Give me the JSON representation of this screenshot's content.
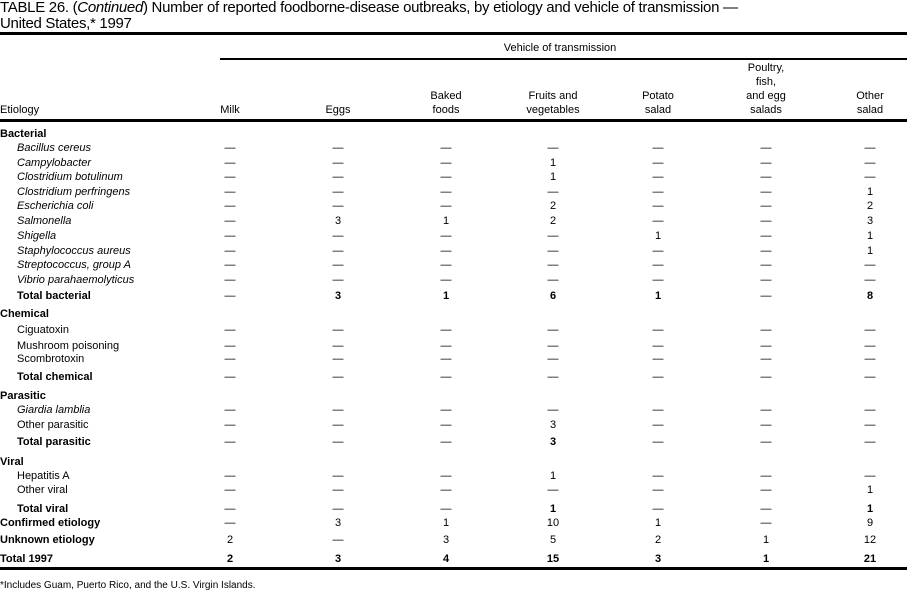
{
  "title": {
    "prefix": "TABLE 26. (",
    "continued": "Continued",
    "suffix": ") Number of reported foodborne-disease  outbreaks, by etiology and vehicle of transmission —",
    "line2": "United States,* 1997"
  },
  "header": {
    "etiology": "Etiology",
    "group": "Vehicle of transmission",
    "columns": [
      "Milk",
      "Eggs",
      "Baked\nfoods",
      "Fruits and\nvegetables",
      "Potato\nsalad",
      "Poultry,\nfish,\nand egg\nsalads",
      "Other\nsalad"
    ]
  },
  "rows": [
    {
      "label": "Bacterial",
      "type": "section"
    },
    {
      "label": "Bacillus cereus",
      "type": "item",
      "italic": true,
      "values": [
        "—",
        "—",
        "—",
        "—",
        "—",
        "—",
        "—"
      ]
    },
    {
      "label": "Campylobacter",
      "type": "item",
      "italic": true,
      "values": [
        "—",
        "—",
        "—",
        "1",
        "—",
        "—",
        "—"
      ]
    },
    {
      "label": "Clostridium botulinum",
      "type": "item",
      "italic": true,
      "values": [
        "—",
        "—",
        "—",
        "1",
        "—",
        "—",
        "—"
      ]
    },
    {
      "label": "Clostridium perfringens",
      "type": "item",
      "italic": true,
      "values": [
        "—",
        "—",
        "—",
        "—",
        "—",
        "—",
        "1"
      ]
    },
    {
      "label": "Escherichia coli",
      "type": "item",
      "italic": true,
      "values": [
        "—",
        "—",
        "—",
        "2",
        "—",
        "—",
        "2"
      ]
    },
    {
      "label": "Salmonella",
      "type": "item",
      "italic": true,
      "values": [
        "—",
        "3",
        "1",
        "2",
        "—",
        "—",
        "3"
      ]
    },
    {
      "label": "Shigella",
      "type": "item",
      "italic": true,
      "values": [
        "—",
        "—",
        "—",
        "—",
        "1",
        "—",
        "1"
      ]
    },
    {
      "label": "Staphylococcus aureus",
      "type": "item",
      "italic": true,
      "values": [
        "—",
        "—",
        "—",
        "—",
        "—",
        "—",
        "1"
      ]
    },
    {
      "label": "Streptococcus, group A",
      "type": "item",
      "italic": true,
      "values": [
        "—",
        "—",
        "—",
        "—",
        "—",
        "—",
        "—"
      ]
    },
    {
      "label": "Vibrio parahaemolyticus",
      "type": "item",
      "italic": true,
      "values": [
        "—",
        "—",
        "—",
        "—",
        "—",
        "—",
        "—"
      ]
    },
    {
      "label": "Total bacterial",
      "type": "subtotal",
      "values": [
        "—",
        "3",
        "1",
        "6",
        "1",
        "—",
        "8"
      ]
    },
    {
      "label": "Chemical",
      "type": "section"
    },
    {
      "label": "Ciguatoxin",
      "type": "item",
      "values": [
        "—",
        "—",
        "—",
        "—",
        "—",
        "—",
        "—"
      ]
    },
    {
      "label": "Mushroom poisoning",
      "type": "item",
      "values": [
        "—",
        "—",
        "—",
        "—",
        "—",
        "—",
        "—"
      ]
    },
    {
      "label": "Scombrotoxin",
      "type": "item",
      "values": [
        "—",
        "—",
        "—",
        "—",
        "—",
        "—",
        "—"
      ]
    },
    {
      "label": "Total chemical",
      "type": "subtotal",
      "values": [
        "—",
        "—",
        "—",
        "—",
        "—",
        "—",
        "—"
      ]
    },
    {
      "label": "Parasitic",
      "type": "section"
    },
    {
      "label": "Giardia lamblia",
      "type": "item",
      "italic": true,
      "values": [
        "—",
        "—",
        "—",
        "—",
        "—",
        "—",
        "—"
      ]
    },
    {
      "label": "Other parasitic",
      "type": "item",
      "values": [
        "—",
        "—",
        "—",
        "3",
        "—",
        "—",
        "—"
      ]
    },
    {
      "label": "Total parasitic",
      "type": "subtotal",
      "values": [
        "—",
        "—",
        "—",
        "3",
        "—",
        "—",
        "—"
      ]
    },
    {
      "label": "Viral",
      "type": "section"
    },
    {
      "label": "Hepatitis A",
      "type": "item",
      "values": [
        "—",
        "—",
        "—",
        "1",
        "—",
        "—",
        "—"
      ]
    },
    {
      "label": "Other viral",
      "type": "item",
      "values": [
        "—",
        "—",
        "—",
        "—",
        "—",
        "—",
        "1"
      ]
    },
    {
      "label": "Total viral",
      "type": "subtotal",
      "values": [
        "—",
        "—",
        "—",
        "1",
        "—",
        "—",
        "1"
      ]
    },
    {
      "label": "Confirmed etiology",
      "type": "summary",
      "values": [
        "—",
        "3",
        "1",
        "10",
        "1",
        "—",
        "9"
      ]
    },
    {
      "label": "Unknown etiology",
      "type": "summary",
      "values": [
        "2",
        "—",
        "3",
        "5",
        "2",
        "1",
        "12"
      ]
    },
    {
      "label": "Total 1997",
      "type": "total",
      "values": [
        "2",
        "3",
        "4",
        "15",
        "3",
        "1",
        "21"
      ]
    }
  ],
  "footnote": "*Includes Guam, Puerto Rico, and the U.S. Virgin Islands."
}
